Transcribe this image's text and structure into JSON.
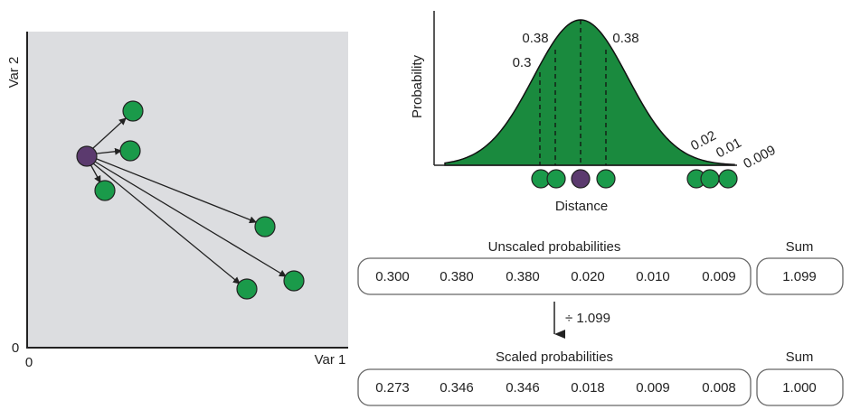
{
  "colors": {
    "panel_bg": "#dcdde0",
    "reference_point": "#5b3a6e",
    "neighbor_point": "#1a9a4a",
    "curve_fill": "#1a8a3e",
    "box_border": "#666666"
  },
  "scatter": {
    "x_label": "Var 1",
    "y_label": "Var 2",
    "x_origin": "0",
    "y_origin": "0"
  },
  "curve": {
    "y_label": "Probability",
    "x_label": "Distance",
    "annotations": [
      "0.38",
      "0.3",
      "0.38",
      "0.02",
      "0.01",
      "0.009"
    ]
  },
  "unscaled": {
    "title": "Unscaled probabilities",
    "values": [
      "0.300",
      "0.380",
      "0.380",
      "0.020",
      "0.010",
      "0.009"
    ],
    "sum_title": "Sum",
    "sum": "1.099"
  },
  "operation": {
    "label": "÷ 1.099"
  },
  "scaled": {
    "title": "Scaled probabilities",
    "values": [
      "0.273",
      "0.346",
      "0.346",
      "0.018",
      "0.009",
      "0.008"
    ],
    "sum_title": "Sum",
    "sum": "1.000"
  }
}
